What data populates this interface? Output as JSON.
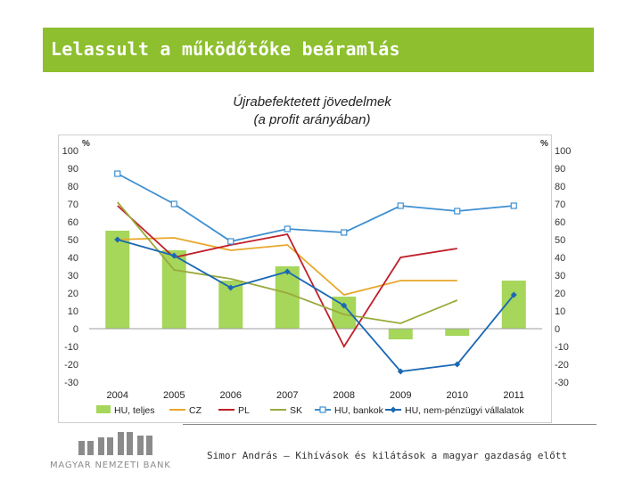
{
  "slide": {
    "title": "Lelassult a működőtőke beáramlás",
    "footer": "Simor András – Kihívások és kilátások a magyar gazdaság előtt",
    "logo_text": "MAGYAR NEMZETI BANK"
  },
  "colors": {
    "title_bar": "#8dbf2e",
    "bars": "#a6d65a",
    "CZ": "#e8a72a",
    "PL": "#c0202a",
    "SK": "#9aaa3c",
    "HU_banks": "#3e8fd0",
    "HU_nonfin": "#1b68b4"
  },
  "chart_data": {
    "type": "bar",
    "title": "Újrabefektetett jövedelmek",
    "subtitle": "(a profit arányában)",
    "y_unit_left": "%",
    "y_unit_right": "%",
    "ylim": [
      -30,
      100
    ],
    "yticks": [
      -30,
      -20,
      -10,
      0,
      10,
      20,
      30,
      40,
      50,
      60,
      70,
      80,
      90,
      100
    ],
    "grid": false,
    "legend_position": "bottom",
    "categories": [
      "2004",
      "2005",
      "2006",
      "2007",
      "2008",
      "2009",
      "2010",
      "2011"
    ],
    "series": [
      {
        "name": "HU, teljes",
        "type": "bar",
        "color": "#a6d65a",
        "values": [
          55,
          44,
          27,
          35,
          18,
          -6,
          -4,
          27
        ]
      },
      {
        "name": "CZ",
        "type": "line",
        "color": "#e8a72a",
        "values": [
          50,
          51,
          44,
          47,
          19,
          27,
          27,
          null
        ]
      },
      {
        "name": "PL",
        "type": "line",
        "color": "#c0202a",
        "values": [
          69,
          40,
          47,
          53,
          -10,
          40,
          45,
          null
        ]
      },
      {
        "name": "SK",
        "type": "line",
        "color": "#9aaa3c",
        "values": [
          71,
          33,
          28,
          20,
          8,
          3,
          16,
          null
        ]
      },
      {
        "name": "HU, bankok",
        "type": "line",
        "marker": "square",
        "color": "#3e8fd0",
        "values": [
          87,
          70,
          49,
          56,
          54,
          69,
          66,
          69
        ]
      },
      {
        "name": "HU, nem-pénzügyi vállalatok",
        "type": "line",
        "marker": "diamond",
        "color": "#1b68b4",
        "values": [
          50,
          41,
          23,
          32,
          13,
          -24,
          -20,
          19
        ]
      }
    ]
  }
}
